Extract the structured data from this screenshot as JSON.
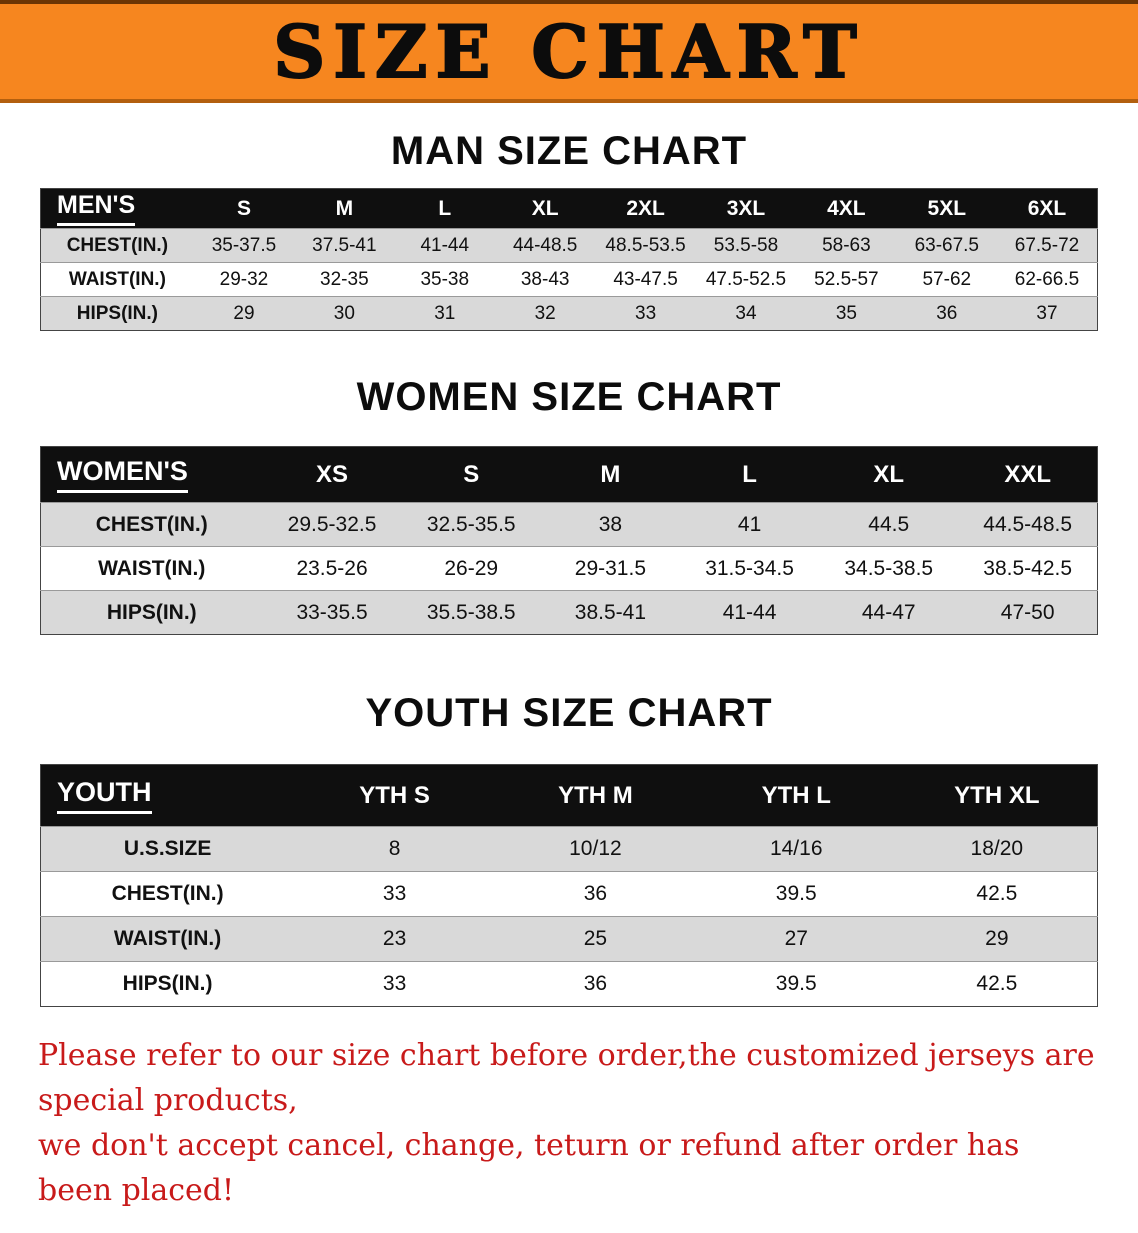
{
  "banner": {
    "title": "SIZE CHART"
  },
  "sections": [
    {
      "heading": "MAN SIZE CHART",
      "header": [
        "MEN'S",
        "S",
        "M",
        "L",
        "XL",
        "2XL",
        "3XL",
        "4XL",
        "5XL",
        "6XL"
      ],
      "rows": [
        [
          "CHEST(IN.)",
          "35-37.5",
          "37.5-41",
          "41-44",
          "44-48.5",
          "48.5-53.5",
          "53.5-58",
          "58-63",
          "63-67.5",
          "67.5-72"
        ],
        [
          "WAIST(IN.)",
          "29-32",
          "32-35",
          "35-38",
          "38-43",
          "43-47.5",
          "47.5-52.5",
          "52.5-57",
          "57-62",
          "62-66.5"
        ],
        [
          "HIPS(IN.)",
          "29",
          "30",
          "31",
          "32",
          "33",
          "34",
          "35",
          "36",
          "37"
        ]
      ]
    },
    {
      "heading": "WOMEN SIZE CHART",
      "header": [
        "WOMEN'S",
        "XS",
        "S",
        "M",
        "L",
        "XL",
        "XXL"
      ],
      "rows": [
        [
          "CHEST(IN.)",
          "29.5-32.5",
          "32.5-35.5",
          "38",
          "41",
          "44.5",
          "44.5-48.5"
        ],
        [
          "WAIST(IN.)",
          "23.5-26",
          "26-29",
          "29-31.5",
          "31.5-34.5",
          "34.5-38.5",
          "38.5-42.5"
        ],
        [
          "HIPS(IN.)",
          "33-35.5",
          "35.5-38.5",
          "38.5-41",
          "41-44",
          "44-47",
          "47-50"
        ]
      ]
    },
    {
      "heading": "YOUTH SIZE CHART",
      "header": [
        "YOUTH",
        "YTH S",
        "YTH M",
        "YTH L",
        "YTH XL"
      ],
      "rows": [
        [
          "U.S.SIZE",
          "8",
          "10/12",
          "14/16",
          "18/20"
        ],
        [
          "CHEST(IN.)",
          "33",
          "36",
          "39.5",
          "42.5"
        ],
        [
          "WAIST(IN.)",
          "23",
          "25",
          "27",
          "29"
        ],
        [
          "HIPS(IN.)",
          "33",
          "36",
          "39.5",
          "42.5"
        ]
      ]
    }
  ],
  "footer": {
    "line1": "Please refer to our size chart before order,the customized jerseys are special products,",
    "line2": "we don't accept cancel, change, teturn or refund after order has been placed!"
  },
  "colors": {
    "banner_orange": "#f6861f",
    "table_header_black": "#0f0f0f",
    "row_gray": "#d9d9d9",
    "notice_red": "#c81a1a"
  }
}
